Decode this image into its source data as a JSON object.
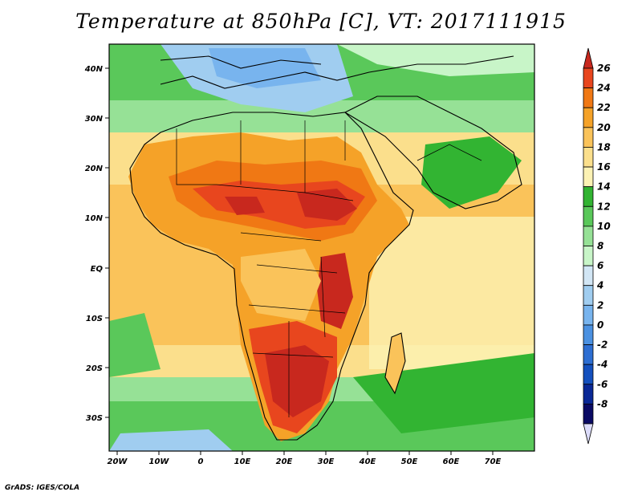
{
  "title": "Temperature at 850hPa [C], VT: 2017111915",
  "footer": "GrADS: IGES/COLA",
  "map": {
    "lat_labels": [
      "40N",
      "30N",
      "20N",
      "10N",
      "EQ",
      "10S",
      "20S",
      "30S"
    ],
    "lon_labels": [
      "20W",
      "10W",
      "0",
      "10E",
      "20E",
      "30E",
      "40E",
      "50E",
      "60E",
      "70E"
    ]
  },
  "colorbar": {
    "labels": [
      "26",
      "24",
      "22",
      "20",
      "18",
      "16",
      "14",
      "12",
      "10",
      "8",
      "6",
      "4",
      "2",
      "0",
      "-2",
      "-4",
      "-6",
      "-8"
    ],
    "colors": [
      "#c8281e",
      "#e8461e",
      "#f07814",
      "#f5a228",
      "#fac35a",
      "#fbdf8c",
      "#fcf2b4",
      "#32b432",
      "#5ac85a",
      "#96e196",
      "#c8f5c8",
      "#d2e6f5",
      "#a0cdf0",
      "#78b4ee",
      "#4b91e1",
      "#2d6ed2",
      "#1450be",
      "#0a2896",
      "#0a0a64",
      "#dcdcfa"
    ]
  },
  "colors": {
    "ocean_tropical": "#fcf2b4",
    "land_hot": "#c8281e"
  }
}
